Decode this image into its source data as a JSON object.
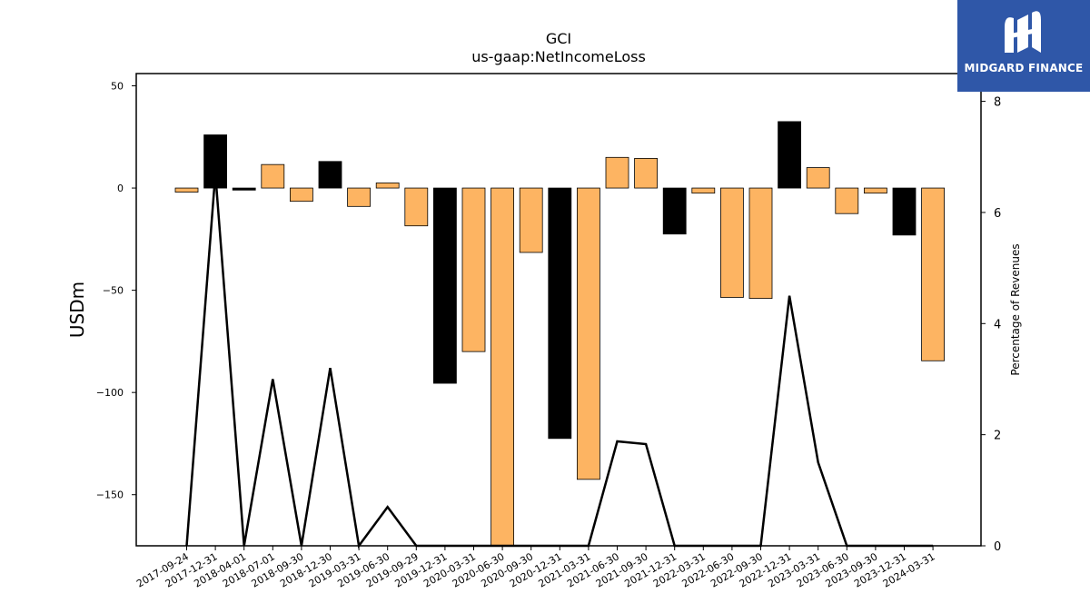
{
  "chart_data": {
    "type": "bar",
    "title": "GCI",
    "subtitle": "us-gaap:NetIncomeLoss",
    "ylabel": "USDm",
    "y2label": "Percentage of Revenues",
    "ylim": [
      -175,
      56
    ],
    "y2lim": [
      0,
      8.5
    ],
    "yticks": [
      50,
      0,
      -50,
      -100,
      -150
    ],
    "y2ticks": [
      0,
      2,
      4,
      6,
      8
    ],
    "categories": [
      "2017-09-24",
      "2017-12-31",
      "2018-04-01",
      "2018-07-01",
      "2018-09-30",
      "2018-12-30",
      "2019-03-31",
      "2019-06-30",
      "2019-09-29",
      "2019-12-31",
      "2020-03-31",
      "2020-06-30",
      "2020-09-30",
      "2020-12-31",
      "2021-03-31",
      "2021-06-30",
      "2021-09-30",
      "2021-12-31",
      "2022-03-31",
      "2022-06-30",
      "2022-09-30",
      "2022-12-31",
      "2023-03-31",
      "2023-06-30",
      "2023-09-30",
      "2023-12-31",
      "2024-03-31"
    ],
    "series": [
      {
        "type": "bar",
        "values": [
          -2,
          26,
          -1,
          11.5,
          -6.5,
          13,
          -9,
          2.5,
          -18.5,
          -95.5,
          -80,
          -176,
          -31.5,
          -122.5,
          -142.5,
          15,
          14.5,
          -22.5,
          -2.5,
          -53.5,
          -54,
          32.5,
          10,
          -12.5,
          -2.5,
          -23,
          -84.5
        ],
        "colors": [
          "#fdb462",
          "#000000",
          "#000000",
          "#fdb462",
          "#fdb462",
          "#000000",
          "#fdb462",
          "#fdb462",
          "#fdb462",
          "#000000",
          "#fdb462",
          "#fdb462",
          "#fdb462",
          "#000000",
          "#fdb462",
          "#fdb462",
          "#fdb462",
          "#000000",
          "#fdb462",
          "#fdb462",
          "#fdb462",
          "#000000",
          "#fdb462",
          "#fdb462",
          "#fdb462",
          "#000000",
          "#fdb462"
        ]
      },
      {
        "type": "line",
        "axis": "right",
        "color": "#000000",
        "values": [
          0,
          6.7,
          0,
          3.0,
          0,
          3.2,
          0,
          0.7,
          0,
          0,
          0,
          0,
          0,
          0,
          0,
          1.88,
          1.83,
          0,
          0,
          0,
          0,
          4.5,
          1.5,
          0,
          0,
          0,
          0
        ]
      }
    ],
    "grid": false
  },
  "logo": {
    "text": "MIDGARD FINANCE"
  }
}
